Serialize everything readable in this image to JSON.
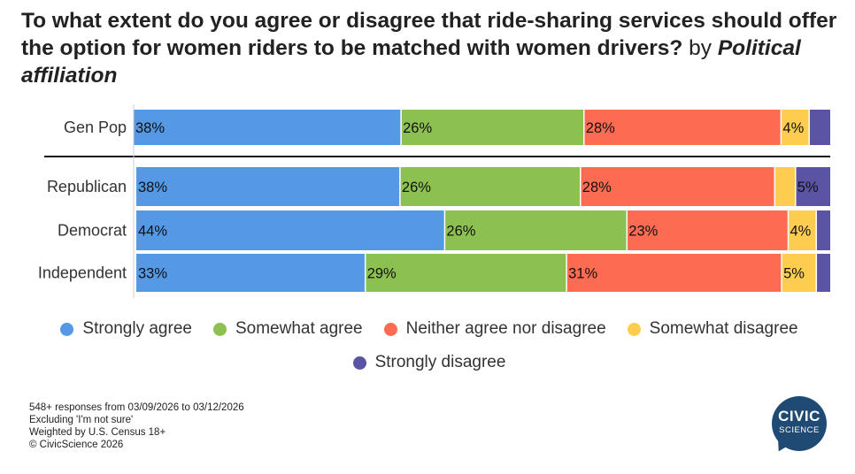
{
  "title": {
    "main": "To what extent do you agree or disagree that ride-sharing services should offer the option for women riders to be matched with women drivers?",
    "by": " by ",
    "affiliation": "Political affiliation"
  },
  "chart_data": {
    "type": "bar",
    "orientation": "horizontal",
    "stacked": true,
    "categories": [
      "Gen Pop",
      "Republican",
      "Democrat",
      "Independent"
    ],
    "series": [
      {
        "name": "Strongly agree",
        "color": "#5599e4",
        "values": [
          38,
          38,
          44,
          33
        ],
        "labels": [
          "38%",
          "38%",
          "44%",
          "33%"
        ]
      },
      {
        "name": "Somewhat agree",
        "color": "#8cc152",
        "values": [
          26,
          26,
          26,
          29
        ],
        "labels": [
          "26%",
          "26%",
          "26%",
          "29%"
        ]
      },
      {
        "name": "Neither agree nor disagree",
        "color": "#fd6c52",
        "values": [
          28,
          28,
          23,
          31
        ],
        "labels": [
          "28%",
          "28%",
          "23%",
          "31%"
        ]
      },
      {
        "name": "Somewhat disagree",
        "color": "#fecd4f",
        "values": [
          4,
          3,
          4,
          5
        ],
        "labels": [
          "4%",
          "",
          "4%",
          "5%"
        ]
      },
      {
        "name": "Strongly disagree",
        "color": "#5b53a4",
        "values": [
          3,
          5,
          2,
          2
        ],
        "labels": [
          "",
          "5%",
          "",
          ""
        ]
      }
    ],
    "xlim": [
      0,
      100
    ],
    "legend_position": "bottom",
    "separator_after_first": true
  },
  "notes": [
    "548+ responses from 03/09/2026 to 03/12/2026",
    "Excluding 'I'm not sure'",
    "Weighted by U.S. Census 18+",
    "© CivicScience 2026"
  ],
  "logo": {
    "line1": "CIVIC",
    "line2": "SCIENCE"
  },
  "icons": {
    "logo": "civicscience-logo-icon"
  }
}
